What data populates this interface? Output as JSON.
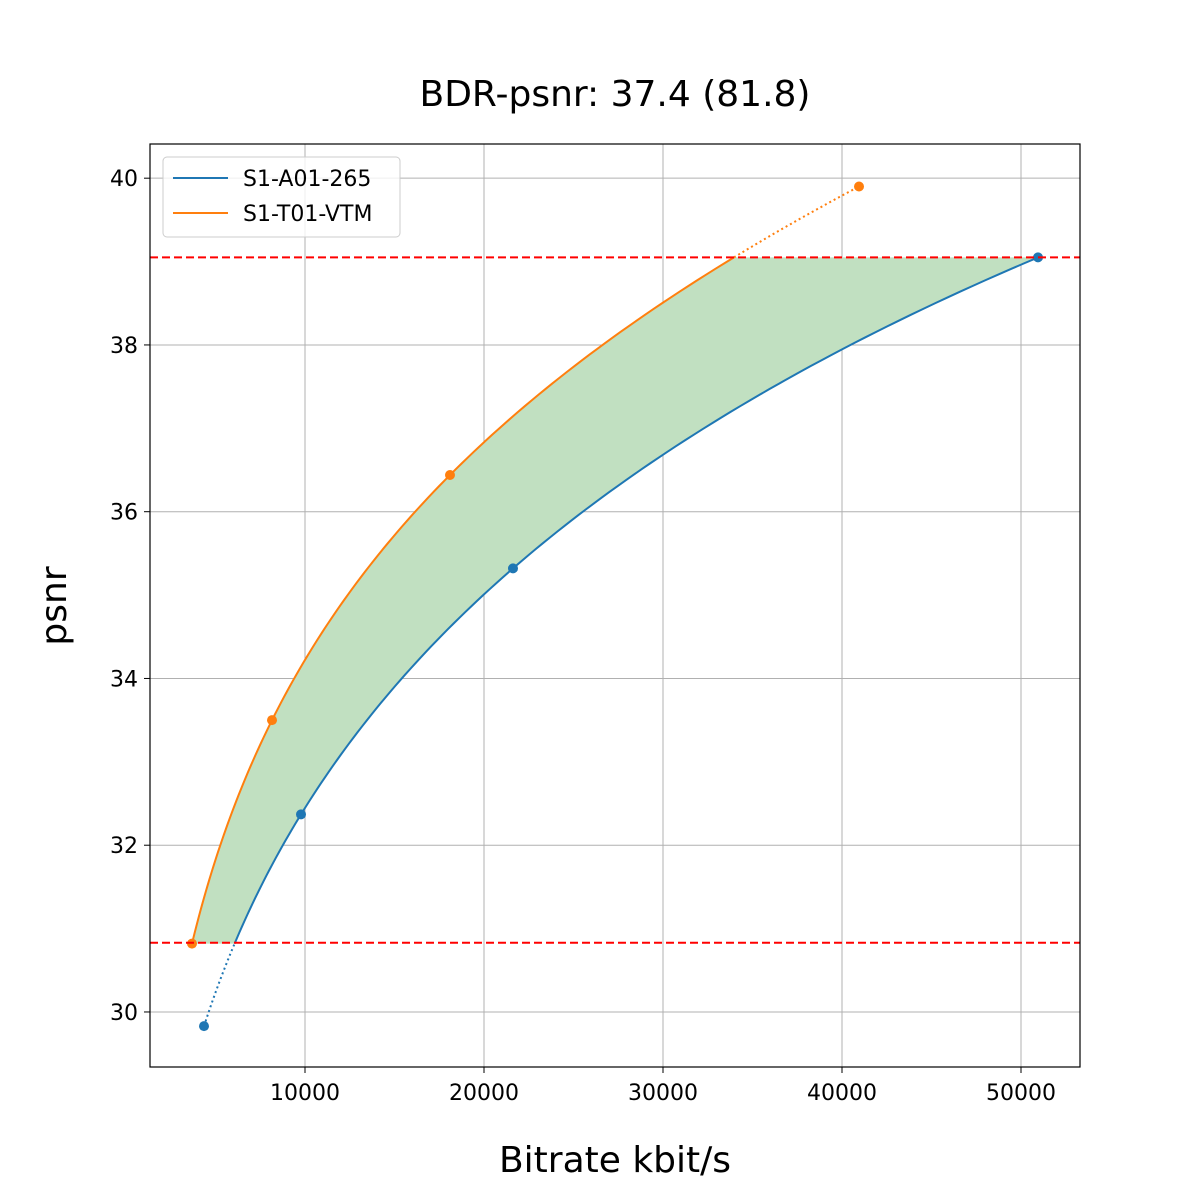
{
  "chart_data": {
    "type": "line",
    "title": "BDR-psnr: 37.4 (81.8)",
    "xlabel": "Bitrate kbit/s",
    "ylabel": "psnr",
    "xlim": [
      1341,
      53296
    ],
    "ylim": [
      29.34,
      40.41
    ],
    "xticks": [
      10000,
      20000,
      30000,
      40000,
      50000
    ],
    "yticks": [
      30,
      32,
      34,
      36,
      38,
      40
    ],
    "grid": true,
    "legend_position": "top-left",
    "series": [
      {
        "name": "S1-A01-265",
        "color": "#1f77b4",
        "x": [
          4358,
          9777,
          21620,
          50950
        ],
        "y": [
          29.83,
          32.37,
          35.32,
          39.05
        ]
      },
      {
        "name": "S1-T01-VTM",
        "color": "#ff7f0e",
        "x": [
          3687,
          8157,
          18100,
          40950
        ],
        "y": [
          30.82,
          33.5,
          36.44,
          39.9
        ]
      }
    ],
    "reference_lines": {
      "y": [
        30.83,
        39.05
      ],
      "color": "#ff0000",
      "style": "dashed"
    },
    "fill": {
      "between": "series curves within overlapping psnr range",
      "color": "#c1e0c1"
    }
  }
}
